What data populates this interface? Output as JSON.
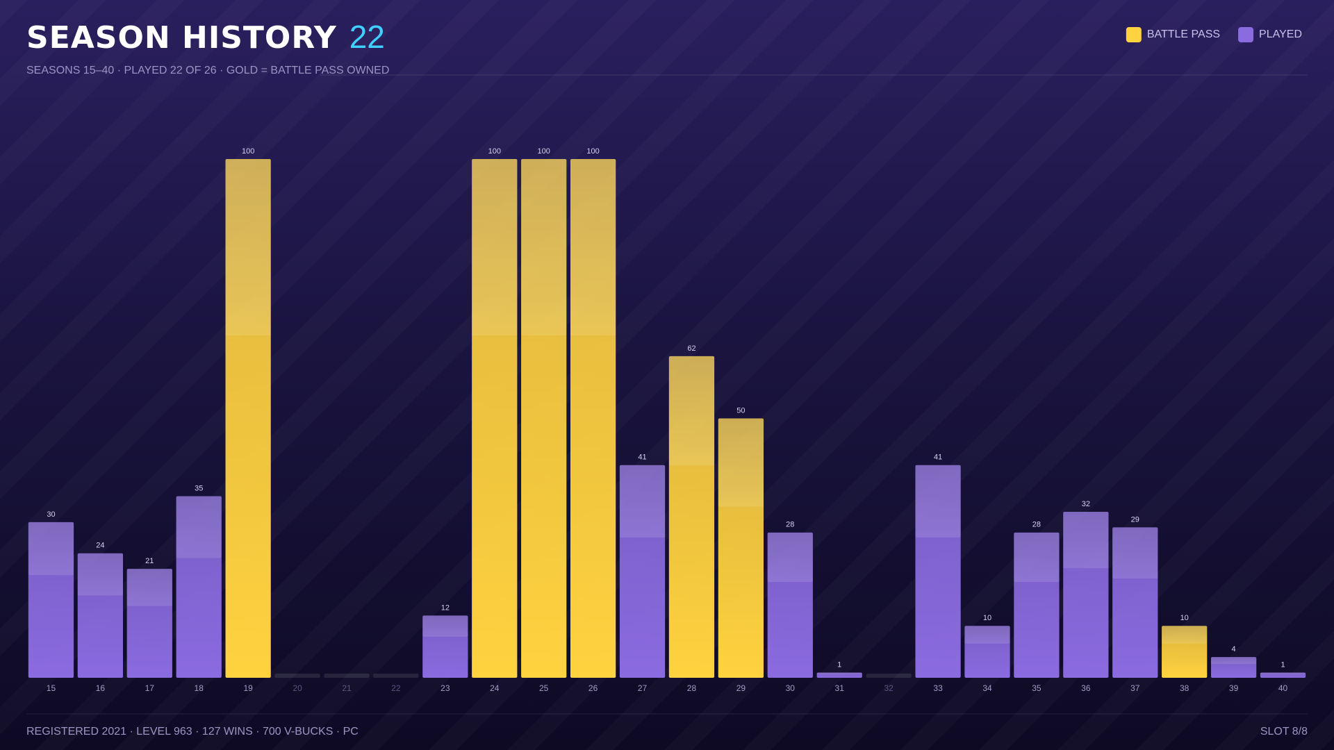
{
  "chart_data": {
    "type": "bar",
    "title": "SEASON HISTORY",
    "title_count": "22",
    "subtitle": "SEASONS 15–40 · PLAYED 22 OF 26 · GOLD = BATTLE PASS OWNED",
    "footer": "REGISTERED 2021 · LEVEL 963 · 127 WINS · 700 V-BUCKS · PC",
    "slot": "SLOT 8/8",
    "categories": [
      "15",
      "16",
      "17",
      "18",
      "19",
      "20",
      "21",
      "22",
      "23",
      "24",
      "25",
      "26",
      "27",
      "28",
      "29",
      "30",
      "31",
      "32",
      "33",
      "34",
      "35",
      "36",
      "37",
      "38",
      "39",
      "40"
    ],
    "series": [
      {
        "name": "BATTLE PASS",
        "color": "#ffd23f",
        "values": [
          null,
          null,
          null,
          null,
          100,
          null,
          null,
          null,
          null,
          100,
          100,
          100,
          null,
          62,
          50,
          null,
          null,
          null,
          null,
          null,
          null,
          null,
          null,
          10,
          null,
          null
        ]
      },
      {
        "name": "PLAYED",
        "color": "#8b6be0",
        "values": [
          30,
          24,
          21,
          35,
          null,
          null,
          null,
          null,
          12,
          null,
          null,
          null,
          41,
          null,
          null,
          28,
          1,
          null,
          41,
          10,
          28,
          32,
          29,
          null,
          4,
          1
        ]
      }
    ],
    "ylim": [
      0,
      100
    ],
    "legend": "top-right"
  }
}
